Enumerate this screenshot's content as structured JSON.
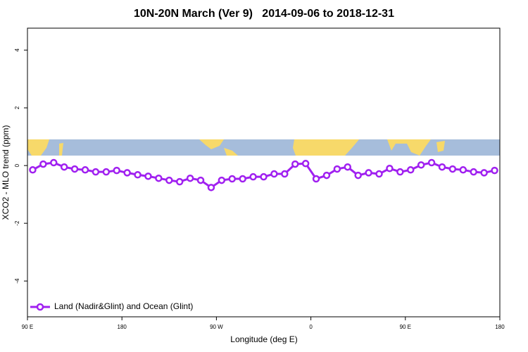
{
  "chart_data": {
    "type": "line",
    "title": "10N-20N March (Ver 9)   2014-09-06 to 2018-12-31",
    "x_label": "Longitude (deg E)",
    "y_label": "XCO2 - MLO trend (ppm)",
    "xlim": [
      90,
      540
    ],
    "ylim": [
      -5.24,
      4.76
    ],
    "xticks": [
      {
        "value": 90,
        "label": "90 E"
      },
      {
        "value": 180,
        "label": "180"
      },
      {
        "value": 270,
        "label": "90 W"
      },
      {
        "value": 360,
        "label": "0"
      },
      {
        "value": 450,
        "label": "90 E"
      },
      {
        "value": 540,
        "label": "180"
      }
    ],
    "yticks": [
      -4,
      -2,
      0,
      2,
      4
    ],
    "legend": "bottom-left",
    "x": [
      95,
      105,
      115,
      125,
      135,
      145,
      155,
      165,
      175,
      185,
      195,
      205,
      215,
      225,
      235,
      245,
      255,
      265,
      275,
      285,
      295,
      305,
      315,
      325,
      335,
      345,
      355,
      365,
      375,
      385,
      395,
      405,
      415,
      425,
      435,
      445,
      455,
      465,
      475,
      485,
      495,
      505,
      515,
      525,
      535
    ],
    "series": [
      {
        "name": "Land (Nadir&Glint) and Ocean (Glint)",
        "color": "#a020f0",
        "values": [
          -0.15,
          0.05,
          0.1,
          -0.05,
          -0.12,
          -0.15,
          -0.22,
          -0.22,
          -0.17,
          -0.25,
          -0.32,
          -0.37,
          -0.44,
          -0.51,
          -0.56,
          -0.44,
          -0.51,
          -0.76,
          -0.51,
          -0.46,
          -0.46,
          -0.39,
          -0.39,
          -0.29,
          -0.29,
          0.05,
          0.07,
          -0.46,
          -0.34,
          -0.12,
          -0.05,
          -0.34,
          -0.25,
          -0.29,
          -0.1,
          -0.22,
          -0.15,
          0.02,
          0.1,
          -0.05,
          -0.12,
          -0.15,
          -0.22,
          -0.25,
          -0.17
        ]
      }
    ]
  }
}
